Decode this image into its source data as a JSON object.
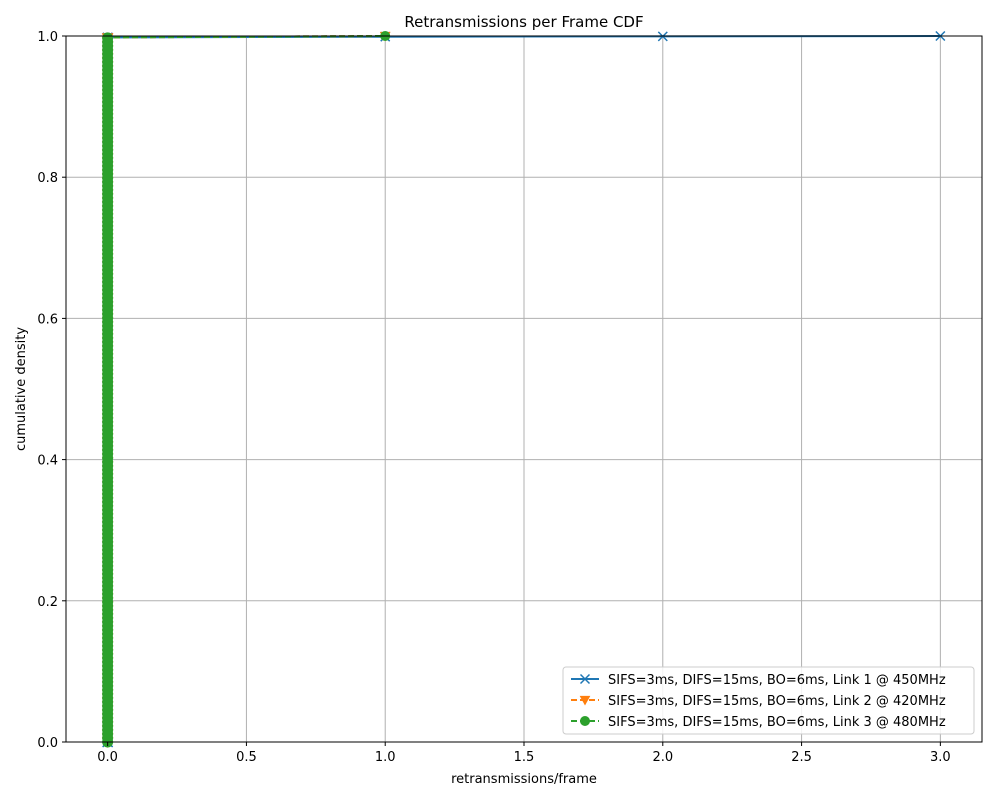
{
  "chart_data": {
    "type": "line",
    "title": "Retransmissions per Frame CDF",
    "xlabel": "retransmissions/frame",
    "ylabel": "cumulative density",
    "xlim": [
      -0.15,
      3.15
    ],
    "ylim": [
      0.0,
      1.0
    ],
    "xticks": [
      0.0,
      0.5,
      1.0,
      1.5,
      2.0,
      2.5,
      3.0
    ],
    "xtick_labels": [
      "0.0",
      "0.5",
      "1.0",
      "1.5",
      "2.0",
      "2.5",
      "3.0"
    ],
    "yticks": [
      0.0,
      0.2,
      0.4,
      0.6,
      0.8,
      1.0
    ],
    "ytick_labels": [
      "0.0",
      "0.2",
      "0.4",
      "0.6",
      "0.8",
      "1.0"
    ],
    "grid": true,
    "legend_position": "lower-right",
    "series": [
      {
        "name": "SIFS=3ms, DIFS=15ms, BO=6ms, Link 1 @ 450MHz",
        "color": "#1f77b4",
        "linestyle": "solid",
        "marker": "x",
        "points": [
          [
            0,
            0.0
          ],
          [
            0,
            0.998
          ],
          [
            1,
            0.999
          ],
          [
            2,
            0.9995
          ],
          [
            3,
            1.0
          ]
        ]
      },
      {
        "name": "SIFS=3ms, DIFS=15ms, BO=6ms, Link 2 @ 420MHz",
        "color": "#ff7f0e",
        "linestyle": "dashed",
        "marker": "triangle-down",
        "points": [
          [
            0,
            0.0
          ],
          [
            0,
            0.998
          ],
          [
            1,
            1.0
          ]
        ]
      },
      {
        "name": "SIFS=3ms, DIFS=15ms, BO=6ms, Link 3 @ 480MHz",
        "color": "#2ca02c",
        "linestyle": "dashed",
        "marker": "circle",
        "points": [
          [
            0,
            0.0
          ],
          [
            0,
            0.998
          ],
          [
            1,
            1.0
          ]
        ]
      }
    ]
  }
}
